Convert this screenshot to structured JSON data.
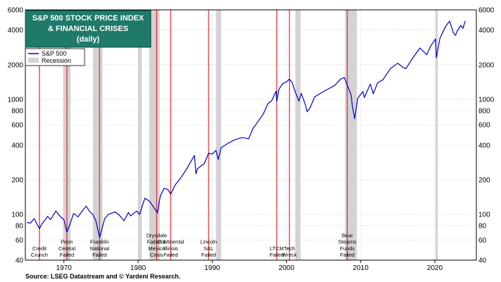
{
  "chart_data": {
    "type": "line",
    "title_lines": [
      "S&P 500 STOCK PRICE INDEX",
      "& FINANCIAL CRISES",
      "(daily)"
    ],
    "source": "Source: LSEG Datastream and © Yardeni Research.",
    "y_scale": "log",
    "ylim": [
      40,
      6000
    ],
    "xlim": [
      1964.8,
      2025.6
    ],
    "y_ticks": [
      40,
      60,
      80,
      100,
      200,
      400,
      600,
      800,
      1000,
      2000,
      4000,
      6000
    ],
    "x_ticks": [
      1970,
      1980,
      1990,
      2000,
      2010,
      2020
    ],
    "grid": true,
    "legend": {
      "placement": "top-left",
      "entries": [
        {
          "name": "S&P 500",
          "color": "#0000cc",
          "kind": "line"
        },
        {
          "name": "Recession",
          "color": "#d3d3d3",
          "kind": "band"
        }
      ]
    },
    "colors": {
      "series": "#0000cc",
      "crisis_line": "#e8232a",
      "recession": "#d3d3d3",
      "title_bg": "#1f7a6a"
    },
    "recessions": [
      [
        1969.9,
        1970.9
      ],
      [
        1973.9,
        1975.2
      ],
      [
        1980.0,
        1980.5
      ],
      [
        1981.5,
        1982.9
      ],
      [
        1990.5,
        1991.2
      ],
      [
        2001.2,
        2001.9
      ],
      [
        2007.9,
        2009.5
      ],
      [
        2020.1,
        2020.4
      ]
    ],
    "crises": [
      {
        "x": 1966.7,
        "label": "Credit\nCrunch"
      },
      {
        "x": 1970.4,
        "label": "Penn\nCentral\nFailed"
      },
      {
        "x": 1974.8,
        "label": "Franklin\nNational\nFailed"
      },
      {
        "x": 1982.5,
        "label": "Drysdale\nFailed &\nMexico\nCrisis"
      },
      {
        "x": 1984.4,
        "label": "Continental\nIllinois\nFailed"
      },
      {
        "x": 1989.5,
        "label": "Lincoln\nS&L\nFailed"
      },
      {
        "x": 1998.7,
        "label": "LTCM\nFailed"
      },
      {
        "x": 2000.4,
        "label": "Tech\nWreck"
      },
      {
        "x": 2008.2,
        "label": "Bear\nStearns\nFunds\nFailed"
      }
    ],
    "series": [
      {
        "name": "S&P 500",
        "points": [
          [
            1965.0,
            85
          ],
          [
            1965.5,
            84
          ],
          [
            1966.0,
            92
          ],
          [
            1966.7,
            75
          ],
          [
            1967.0,
            82
          ],
          [
            1967.8,
            96
          ],
          [
            1968.2,
            90
          ],
          [
            1968.9,
            107
          ],
          [
            1969.5,
            96
          ],
          [
            1970.0,
            90
          ],
          [
            1970.4,
            70
          ],
          [
            1970.9,
            85
          ],
          [
            1971.3,
            102
          ],
          [
            1971.9,
            95
          ],
          [
            1972.5,
            108
          ],
          [
            1973.0,
            118
          ],
          [
            1973.5,
            105
          ],
          [
            1973.9,
            100
          ],
          [
            1974.3,
            88
          ],
          [
            1974.8,
            63
          ],
          [
            1975.0,
            70
          ],
          [
            1975.5,
            92
          ],
          [
            1976.0,
            100
          ],
          [
            1976.9,
            105
          ],
          [
            1977.5,
            98
          ],
          [
            1978.1,
            88
          ],
          [
            1978.7,
            104
          ],
          [
            1979.0,
            97
          ],
          [
            1979.8,
            107
          ],
          [
            1980.2,
            100
          ],
          [
            1980.9,
            138
          ],
          [
            1981.5,
            131
          ],
          [
            1982.0,
            118
          ],
          [
            1982.6,
            103
          ],
          [
            1983.0,
            145
          ],
          [
            1983.5,
            168
          ],
          [
            1984.0,
            165
          ],
          [
            1984.4,
            150
          ],
          [
            1985.0,
            180
          ],
          [
            1985.8,
            210
          ],
          [
            1986.5,
            245
          ],
          [
            1987.0,
            280
          ],
          [
            1987.6,
            325
          ],
          [
            1987.8,
            225
          ],
          [
            1988.0,
            250
          ],
          [
            1988.9,
            275
          ],
          [
            1989.5,
            340
          ],
          [
            1990.0,
            335
          ],
          [
            1990.5,
            360
          ],
          [
            1990.8,
            300
          ],
          [
            1991.2,
            380
          ],
          [
            1992.0,
            410
          ],
          [
            1993.0,
            445
          ],
          [
            1994.0,
            465
          ],
          [
            1994.9,
            455
          ],
          [
            1995.5,
            560
          ],
          [
            1996.0,
            620
          ],
          [
            1996.9,
            750
          ],
          [
            1997.5,
            920
          ],
          [
            1998.0,
            970
          ],
          [
            1998.6,
            1180
          ],
          [
            1998.7,
            960
          ],
          [
            1999.0,
            1230
          ],
          [
            1999.5,
            1370
          ],
          [
            2000.0,
            1420
          ],
          [
            2000.4,
            1500
          ],
          [
            2000.8,
            1390
          ],
          [
            2001.2,
            1150
          ],
          [
            2001.7,
            965
          ],
          [
            2002.0,
            1130
          ],
          [
            2002.5,
            920
          ],
          [
            2002.8,
            780
          ],
          [
            2003.2,
            850
          ],
          [
            2003.8,
            1050
          ],
          [
            2004.5,
            1120
          ],
          [
            2005.5,
            1220
          ],
          [
            2006.5,
            1320
          ],
          [
            2007.3,
            1500
          ],
          [
            2007.8,
            1550
          ],
          [
            2008.2,
            1330
          ],
          [
            2008.7,
            1100
          ],
          [
            2008.9,
            860
          ],
          [
            2009.2,
            680
          ],
          [
            2009.6,
            1020
          ],
          [
            2010.3,
            1170
          ],
          [
            2010.5,
            1040
          ],
          [
            2011.3,
            1360
          ],
          [
            2011.7,
            1120
          ],
          [
            2012.3,
            1400
          ],
          [
            2013.0,
            1480
          ],
          [
            2014.0,
            1850
          ],
          [
            2015.0,
            2060
          ],
          [
            2015.7,
            1900
          ],
          [
            2016.1,
            1850
          ],
          [
            2017.0,
            2280
          ],
          [
            2018.0,
            2800
          ],
          [
            2018.9,
            2450
          ],
          [
            2019.5,
            2950
          ],
          [
            2020.1,
            3350
          ],
          [
            2020.2,
            2300
          ],
          [
            2020.7,
            3400
          ],
          [
            2021.0,
            3750
          ],
          [
            2021.5,
            4350
          ],
          [
            2022.0,
            4780
          ],
          [
            2022.5,
            3800
          ],
          [
            2022.8,
            3600
          ],
          [
            2023.0,
            3900
          ],
          [
            2023.5,
            4400
          ],
          [
            2023.8,
            4150
          ],
          [
            2024.1,
            4800
          ]
        ]
      }
    ]
  }
}
